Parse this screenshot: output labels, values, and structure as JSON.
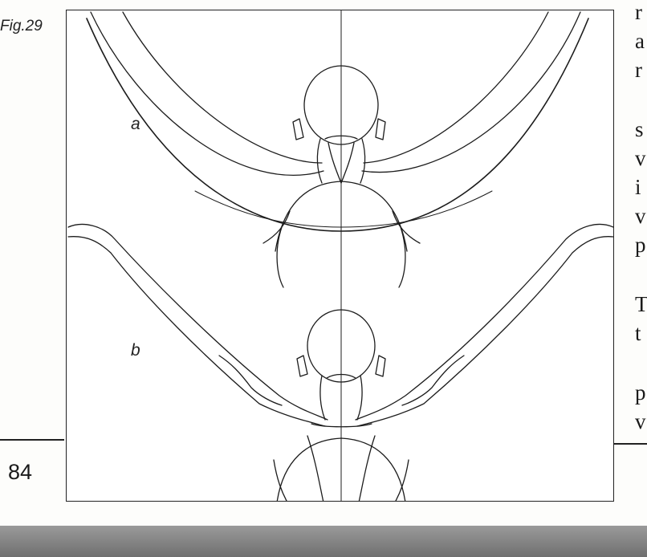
{
  "figure": {
    "caption": "Fig.29",
    "panel_a_label": "a",
    "panel_b_label": "b"
  },
  "page": {
    "number": "84"
  },
  "right_column": {
    "letters": [
      "r",
      "a",
      "r",
      "s",
      "v",
      "i",
      "v",
      "p",
      "T",
      "t",
      "p",
      "v"
    ]
  }
}
